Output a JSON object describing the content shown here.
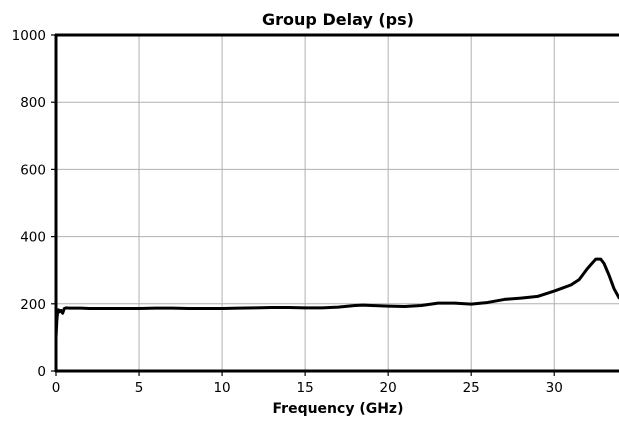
{
  "chart_data": {
    "type": "line",
    "title": "Group Delay (ps)",
    "xlabel": "Frequency (GHz)",
    "ylabel": "",
    "xlim": [
      0,
      33.9
    ],
    "ylim": [
      0,
      1000
    ],
    "xticks": [
      0,
      5,
      10,
      15,
      20,
      25,
      30
    ],
    "yticks": [
      0,
      200,
      400,
      600,
      800,
      1000
    ],
    "grid": true,
    "legend": "none",
    "colors": {
      "line": "#000000",
      "grid": "#b0b0b0",
      "axis": "#000000"
    },
    "series": [
      {
        "x": [
          0,
          0.05,
          0.1,
          0.15,
          0.2,
          0.3,
          0.4,
          0.5,
          0.6,
          0.8,
          1,
          1.5,
          2,
          3,
          4,
          5,
          6,
          7,
          8,
          9,
          10,
          11,
          12,
          13,
          14,
          15,
          16,
          17,
          18,
          18.5,
          19,
          20,
          21,
          22,
          23,
          24,
          25,
          26,
          27,
          28,
          29,
          30,
          31,
          31.5,
          32,
          32.5,
          32.8,
          33,
          33.3,
          33.6,
          33.9
        ],
        "y": [
          100,
          150,
          178,
          182,
          176,
          180,
          172,
          186,
          188,
          187,
          187,
          187,
          186,
          186,
          186,
          186,
          187,
          187,
          186,
          186,
          186,
          187,
          188,
          189,
          189,
          188,
          188,
          190,
          195,
          196,
          195,
          193,
          192,
          195,
          202,
          202,
          199,
          204,
          213,
          217,
          222,
          238,
          256,
          272,
          305,
          333,
          333,
          320,
          285,
          245,
          218
        ]
      }
    ]
  }
}
